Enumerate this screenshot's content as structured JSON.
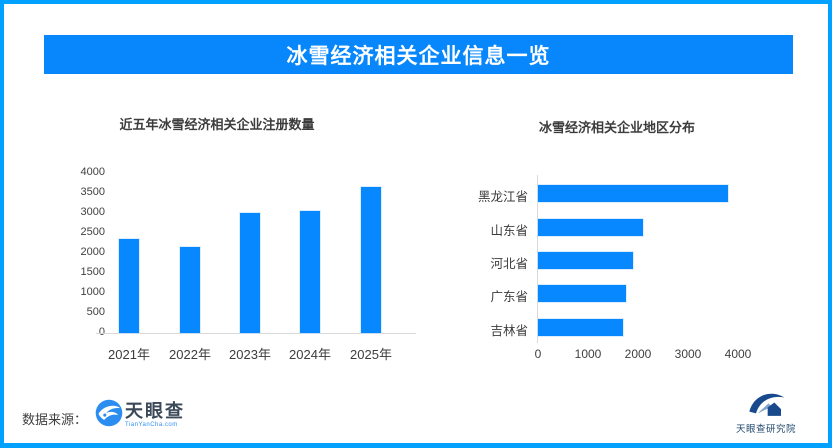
{
  "page": {
    "border_color": "#01A1FF",
    "banner_color": "#0787FB",
    "bar_color": "#0888FE",
    "axis_color": "#d9d9d9"
  },
  "header": {
    "title": "冰雪经济相关企业信息一览"
  },
  "chart_data": [
    {
      "type": "bar",
      "title": "近五年冰雪经济相关企业注册数量",
      "categories": [
        "2021年",
        "2022年",
        "2023年",
        "2024年",
        "2025年"
      ],
      "values": [
        2350,
        2150,
        3000,
        3050,
        3650
      ],
      "xlabel": "",
      "ylabel": "",
      "ylim": [
        0,
        4000
      ],
      "yticks": [
        0,
        500,
        1000,
        1500,
        2000,
        2500,
        3000,
        3500,
        4000
      ],
      "grid": false,
      "legend": false,
      "bar_color": "#0888FE"
    },
    {
      "type": "bar-horizontal",
      "title": "冰雪经济相关企业地区分布",
      "categories": [
        "黑龙江省",
        "山东省",
        "河北省",
        "广东省",
        "吉林省"
      ],
      "values": [
        3800,
        2100,
        1900,
        1750,
        1700
      ],
      "xlabel": "",
      "ylabel": "",
      "xlim": [
        0,
        4000
      ],
      "xticks": [
        0,
        1000,
        2000,
        3000,
        4000
      ],
      "grid": false,
      "legend": false,
      "bar_color": "#0888FE"
    }
  ],
  "footer": {
    "source_label": "数据来源：",
    "tianyancha": {
      "name": "天眼查",
      "domain": "TianYanCha.com"
    },
    "research": {
      "name": "天眼查研究院"
    }
  }
}
